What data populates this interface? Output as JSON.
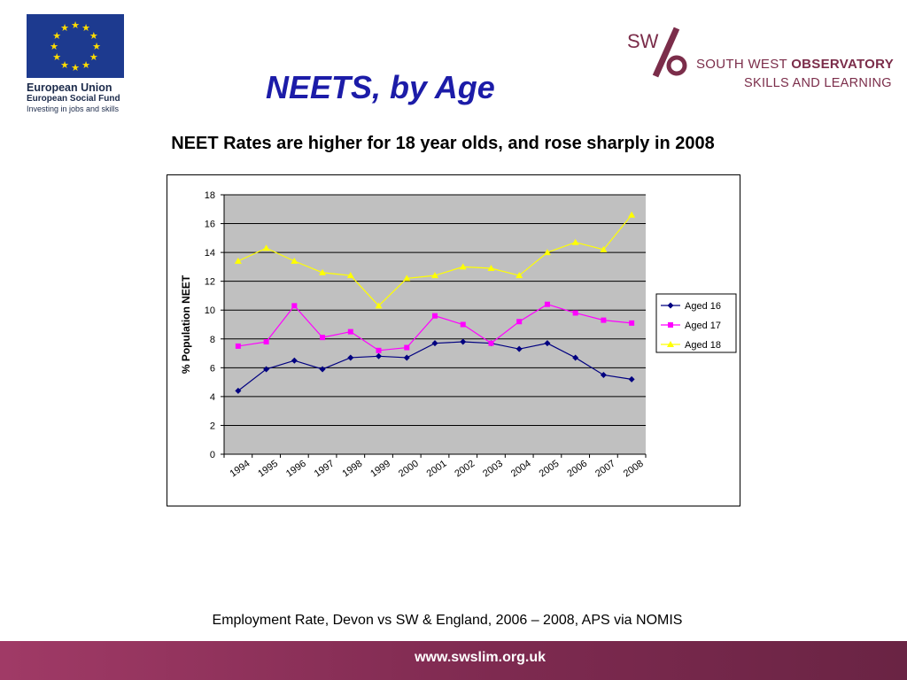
{
  "slide": {
    "title": "NEETS, by Age",
    "subtitle": "NEET Rates are higher for 18 year olds, and rose sharply in 2008",
    "caption": "Employment Rate, Devon vs SW & England, 2006 – 2008, APS via NOMIS",
    "footer_url": "www.swslim.org.uk"
  },
  "eu_logo": {
    "line1": "European Union",
    "line2": "European Social Fund",
    "line3": "Investing in jobs and skills"
  },
  "sw_logo": {
    "mark_letters": "SW",
    "line1_normal": "SOUTH WEST ",
    "line1_bold": "OBSERVATORY",
    "line2": "SKILLS AND LEARNING"
  },
  "colors": {
    "title": "#1c1ca8",
    "plot_background": "#c0c0c0",
    "aged16": "#000080",
    "aged17": "#ff00ff",
    "aged18": "#ffff00",
    "footer": "#7e2a50"
  },
  "chart_data": {
    "type": "line",
    "title": "",
    "xlabel": "",
    "ylabel": "% Population NEET",
    "x": [
      "1994",
      "1995",
      "1996",
      "1997",
      "1998",
      "1999",
      "2000",
      "2001",
      "2002",
      "2003",
      "2004",
      "2005",
      "2006",
      "2007",
      "2008"
    ],
    "ylim": [
      0,
      18
    ],
    "yticks": [
      0,
      2,
      4,
      6,
      8,
      10,
      12,
      14,
      16,
      18
    ],
    "grid": "horizontal",
    "legend_position": "right",
    "series": [
      {
        "name": "Aged 16",
        "marker": "diamond",
        "values": [
          4.4,
          5.9,
          6.5,
          5.9,
          6.7,
          6.8,
          6.7,
          7.7,
          7.8,
          7.7,
          7.3,
          7.7,
          6.7,
          5.5,
          5.2
        ]
      },
      {
        "name": "Aged 17",
        "marker": "square",
        "values": [
          7.5,
          7.8,
          10.3,
          8.1,
          8.5,
          7.2,
          7.4,
          9.6,
          9.0,
          7.7,
          9.2,
          10.4,
          9.8,
          9.3,
          9.1
        ]
      },
      {
        "name": "Aged 18",
        "marker": "triangle",
        "values": [
          13.4,
          14.3,
          13.4,
          12.6,
          12.4,
          10.3,
          12.2,
          12.4,
          13.0,
          12.9,
          12.4,
          14.0,
          14.7,
          14.2,
          16.6
        ]
      }
    ]
  }
}
